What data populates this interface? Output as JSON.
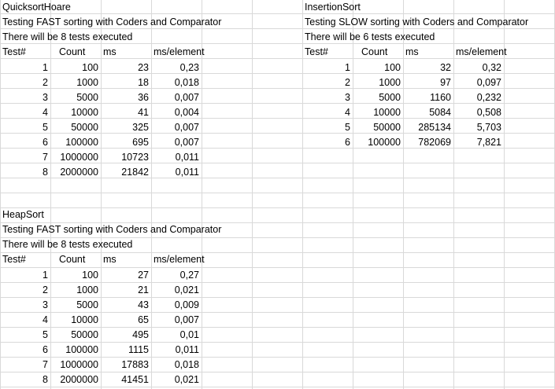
{
  "blocks": {
    "quicksort": {
      "name": "QuicksortHoare",
      "description": "Testing FAST sorting with Coders and Comparator",
      "tests_line": "There will be 8 tests executed",
      "headers": [
        "Test#",
        "Count",
        "ms",
        "ms/element"
      ],
      "rows": [
        [
          "1",
          "100",
          "23",
          "0,23"
        ],
        [
          "2",
          "1000",
          "18",
          "0,018"
        ],
        [
          "3",
          "5000",
          "36",
          "0,007"
        ],
        [
          "4",
          "10000",
          "41",
          "0,004"
        ],
        [
          "5",
          "50000",
          "325",
          "0,007"
        ],
        [
          "6",
          "100000",
          "695",
          "0,007"
        ],
        [
          "7",
          "1000000",
          "10723",
          "0,011"
        ],
        [
          "8",
          "2000000",
          "21842",
          "0,011"
        ]
      ]
    },
    "insertion": {
      "name": "InsertionSort",
      "description": "Testing SLOW sorting with Coders and Comparator",
      "tests_line": "There will be 6 tests executed",
      "headers": [
        "Test#",
        "Count",
        "ms",
        "ms/element"
      ],
      "rows": [
        [
          "1",
          "100",
          "32",
          "0,32"
        ],
        [
          "2",
          "1000",
          "97",
          "0,097"
        ],
        [
          "3",
          "5000",
          "1160",
          "0,232"
        ],
        [
          "4",
          "10000",
          "5084",
          "0,508"
        ],
        [
          "5",
          "50000",
          "285134",
          "5,703"
        ],
        [
          "6",
          "100000",
          "782069",
          "7,821"
        ]
      ]
    },
    "heapsort": {
      "name": "HeapSort",
      "description": "Testing FAST sorting with Coders and Comparator",
      "tests_line": "There will be 8 tests executed",
      "headers": [
        "Test#",
        "Count",
        "ms",
        "ms/element"
      ],
      "rows": [
        [
          "1",
          "100",
          "27",
          "0,27"
        ],
        [
          "2",
          "1000",
          "21",
          "0,021"
        ],
        [
          "3",
          "5000",
          "43",
          "0,009"
        ],
        [
          "4",
          "10000",
          "65",
          "0,007"
        ],
        [
          "5",
          "50000",
          "495",
          "0,01"
        ],
        [
          "6",
          "100000",
          "1115",
          "0,011"
        ],
        [
          "7",
          "1000000",
          "17883",
          "0,018"
        ],
        [
          "8",
          "2000000",
          "41451",
          "0,021"
        ]
      ]
    }
  }
}
